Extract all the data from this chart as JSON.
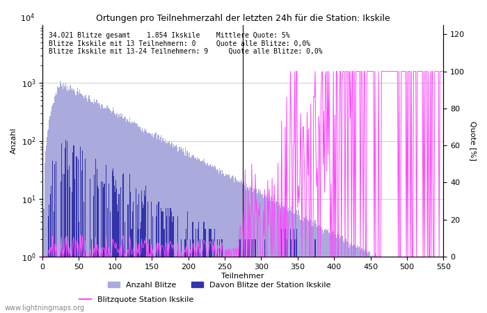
{
  "title": "Ortungen pro Teilnehmerzahl der letzten 24h für die Station: Ikskile",
  "xlabel": "Teilnehmer",
  "ylabel_left": "Anzahl",
  "ylabel_right": "Quote [%]",
  "annotation_lines": [
    "34.021 Blitze gesamt    1.854 Ikskile    Mittlere Quote: 5%",
    "Blitze Ikskile mit 13 Teilnehmern: 0     Quote alle Blitze: 0,0%",
    "Blitze Ikskile mit 13-24 Teilnehmern: 9     Quote alle Blitze: 0,0%"
  ],
  "watermark": "www.lightningmaps.org",
  "bar_color_total": "#aaaadd",
  "bar_color_station": "#3333aa",
  "line_color_quote": "#ff44ff",
  "xlim": [
    0,
    550
  ],
  "ylim_left": [
    1,
    10000
  ],
  "ylim_right": [
    0,
    125
  ],
  "yticks_right": [
    0,
    20,
    40,
    60,
    80,
    100,
    120
  ],
  "ytick_labels_right": [
    "0",
    "20",
    "40",
    "60",
    "80",
    "100",
    "120"
  ],
  "xticks": [
    0,
    50,
    100,
    150,
    200,
    250,
    300,
    350,
    400,
    450,
    500,
    550
  ],
  "legend_entries": [
    "Anzahl Blitze",
    "Davon Blitze der Station Ikskile",
    "Blitzquote Station Ikskile"
  ],
  "num_participants": 550,
  "vline_x": 275
}
